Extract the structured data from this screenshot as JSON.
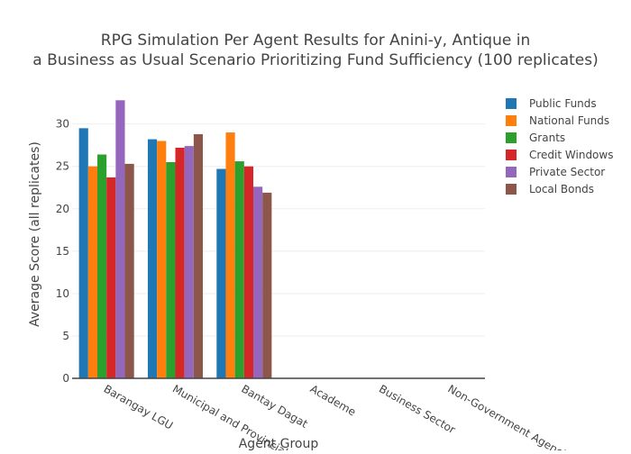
{
  "chart_data": {
    "type": "bar",
    "title_line1": "RPG Simulation Per Agent Results for Anini-y, Antique in",
    "title_line2": "a Business as Usual Scenario Prioritizing Fund Sufficiency (100 replicates)",
    "xlabel": "Agent Group",
    "ylabel": "Average Score (all replicates)",
    "ylim": [
      0,
      34
    ],
    "yticks": [
      0,
      5,
      10,
      15,
      20,
      25,
      30
    ],
    "grid": true,
    "legend_position": "right",
    "categories": [
      "Barangay LGU",
      "Municipal and Provincial LGU",
      "Bantay Dagat",
      "Academe",
      "Business Sector",
      "Non-Government Agencies"
    ],
    "series": [
      {
        "name": "Public Funds",
        "color": "#1f77b4",
        "values": [
          29.5,
          28.2,
          24.7,
          0,
          0,
          0
        ]
      },
      {
        "name": "National Funds",
        "color": "#ff7f0e",
        "values": [
          25.0,
          28.0,
          29.0,
          0,
          0,
          0
        ]
      },
      {
        "name": "Grants",
        "color": "#2ca02c",
        "values": [
          26.4,
          25.5,
          25.6,
          0,
          0,
          0
        ]
      },
      {
        "name": "Credit Windows",
        "color": "#d62728",
        "values": [
          23.7,
          27.2,
          25.0,
          0,
          0,
          0
        ]
      },
      {
        "name": "Private Sector",
        "color": "#9467bd",
        "values": [
          32.8,
          27.4,
          22.6,
          0,
          0,
          0
        ]
      },
      {
        "name": "Local Bonds",
        "color": "#8c564b",
        "values": [
          25.3,
          28.8,
          21.9,
          0,
          0,
          0
        ]
      }
    ]
  }
}
